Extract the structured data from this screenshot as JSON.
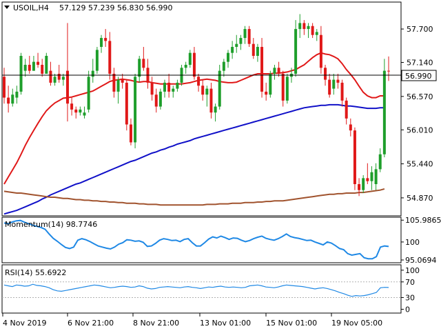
{
  "header": {
    "symbol": "USOIL,H4",
    "ohlc": "57.129 57.239 56.830 56.990"
  },
  "colors": {
    "bull": "#1e9e2b",
    "bear": "#e01818",
    "ma_fast": "#e01818",
    "ma_mid": "#1010c8",
    "ma_slow": "#a0522d",
    "indicator": "#1e88e5",
    "grid": "#b0b0b0"
  },
  "chart_data": [
    {
      "type": "candlestick",
      "title": "USOIL,H4",
      "ylim": [
        54.58,
        58.14
      ],
      "y_ticks": [
        "57.700",
        "57.140",
        "56.570",
        "56.010",
        "55.440",
        "54.870"
      ],
      "current_price": "56.990",
      "x_labels": [
        "4 Nov 2019",
        "6 Nov 21:00",
        "8 Nov 21:00",
        "13 Nov 01:00",
        "15 Nov 01:00",
        "19 Nov 05:00"
      ],
      "candles": [
        [
          56.9,
          57.05,
          56.45,
          56.55
        ],
        [
          56.55,
          56.75,
          56.3,
          56.45
        ],
        [
          56.45,
          56.7,
          56.4,
          56.6
        ],
        [
          56.55,
          56.75,
          56.45,
          56.65
        ],
        [
          56.65,
          57.3,
          56.6,
          57.25
        ],
        [
          57.0,
          57.2,
          56.9,
          57.1
        ],
        [
          57.1,
          57.25,
          56.95,
          57.0
        ],
        [
          57.0,
          57.25,
          57.0,
          57.15
        ],
        [
          57.15,
          57.3,
          57.05,
          57.1
        ],
        [
          57.1,
          57.2,
          56.9,
          56.95
        ],
        [
          56.95,
          57.3,
          56.95,
          57.25
        ],
        [
          57.0,
          57.15,
          56.75,
          56.8
        ],
        [
          56.8,
          56.95,
          56.75,
          56.9
        ],
        [
          56.95,
          57.1,
          56.8,
          56.85
        ],
        [
          56.85,
          56.95,
          56.75,
          56.9
        ],
        [
          57.0,
          57.8,
          56.15,
          56.45
        ],
        [
          56.45,
          56.55,
          56.25,
          56.35
        ],
        [
          56.35,
          56.4,
          56.2,
          56.3
        ],
        [
          56.3,
          56.4,
          56.25,
          56.35
        ],
        [
          56.25,
          56.4,
          56.2,
          56.3
        ],
        [
          56.35,
          57.0,
          56.3,
          56.9
        ],
        [
          56.9,
          57.2,
          56.8,
          57.0
        ],
        [
          57.0,
          57.4,
          56.95,
          57.35
        ],
        [
          57.4,
          57.6,
          57.3,
          57.55
        ],
        [
          57.55,
          57.7,
          57.4,
          57.5
        ],
        [
          57.5,
          57.65,
          56.85,
          56.95
        ],
        [
          56.95,
          57.05,
          56.55,
          56.65
        ],
        [
          56.65,
          56.9,
          56.45,
          56.85
        ],
        [
          56.85,
          56.95,
          56.7,
          56.8
        ],
        [
          56.8,
          56.85,
          56.0,
          56.1
        ],
        [
          56.1,
          56.2,
          55.75,
          55.8
        ],
        [
          55.8,
          56.95,
          55.7,
          56.9
        ],
        [
          56.9,
          57.25,
          56.8,
          57.2
        ],
        [
          57.2,
          57.4,
          57.0,
          57.05
        ],
        [
          57.05,
          57.2,
          56.7,
          56.8
        ],
        [
          56.8,
          56.9,
          56.5,
          56.6
        ],
        [
          56.6,
          56.7,
          56.3,
          56.4
        ],
        [
          56.4,
          56.7,
          56.35,
          56.65
        ],
        [
          56.65,
          56.85,
          56.55,
          56.8
        ],
        [
          56.8,
          56.95,
          56.55,
          56.65
        ],
        [
          56.65,
          56.75,
          56.55,
          56.7
        ],
        [
          56.7,
          56.85,
          56.65,
          56.8
        ],
        [
          56.8,
          57.1,
          56.75,
          57.05
        ],
        [
          57.05,
          57.15,
          56.95,
          57.1
        ],
        [
          57.1,
          57.35,
          57.05,
          57.3
        ],
        [
          57.3,
          57.4,
          56.85,
          56.9
        ],
        [
          56.9,
          56.95,
          56.65,
          56.75
        ],
        [
          56.75,
          56.85,
          56.5,
          56.6
        ],
        [
          56.6,
          56.75,
          56.4,
          56.7
        ],
        [
          56.7,
          56.8,
          56.2,
          56.3
        ],
        [
          56.3,
          56.45,
          56.15,
          56.4
        ],
        [
          56.4,
          57.1,
          56.35,
          57.0
        ],
        [
          57.0,
          57.2,
          56.9,
          57.15
        ],
        [
          57.15,
          57.35,
          57.05,
          57.3
        ],
        [
          57.3,
          57.5,
          57.2,
          57.4
        ],
        [
          57.4,
          57.6,
          57.3,
          57.45
        ],
        [
          57.45,
          57.6,
          57.35,
          57.55
        ],
        [
          57.55,
          57.75,
          57.45,
          57.7
        ],
        [
          57.7,
          57.75,
          57.4,
          57.45
        ],
        [
          57.45,
          57.55,
          57.2,
          57.25
        ],
        [
          57.25,
          57.45,
          57.15,
          57.4
        ],
        [
          57.4,
          57.55,
          56.55,
          56.65
        ],
        [
          56.65,
          56.8,
          56.5,
          56.6
        ],
        [
          56.6,
          57.0,
          56.55,
          56.95
        ],
        [
          56.95,
          57.1,
          56.85,
          57.05
        ],
        [
          57.05,
          57.15,
          56.9,
          56.95
        ],
        [
          56.95,
          57.0,
          56.4,
          56.5
        ],
        [
          56.5,
          56.95,
          56.45,
          56.9
        ],
        [
          56.9,
          57.05,
          56.8,
          56.95
        ],
        [
          56.95,
          57.85,
          56.9,
          57.7
        ],
        [
          57.7,
          57.95,
          57.55,
          57.8
        ],
        [
          57.8,
          57.85,
          57.6,
          57.7
        ],
        [
          57.7,
          57.8,
          57.55,
          57.75
        ],
        [
          57.75,
          57.8,
          57.55,
          57.6
        ],
        [
          57.6,
          57.7,
          57.5,
          57.65
        ],
        [
          57.6,
          57.75,
          56.95,
          57.05
        ],
        [
          57.05,
          57.1,
          56.75,
          56.85
        ],
        [
          56.85,
          56.95,
          56.55,
          56.6
        ],
        [
          56.7,
          56.95,
          56.6,
          56.85
        ],
        [
          56.85,
          56.95,
          56.7,
          56.8
        ],
        [
          56.8,
          56.85,
          56.4,
          56.5
        ],
        [
          56.5,
          56.55,
          56.1,
          56.2
        ],
        [
          56.1,
          56.2,
          55.9,
          56.0
        ],
        [
          56.0,
          56.05,
          55.0,
          55.1
        ],
        [
          55.1,
          55.2,
          54.9,
          55.0
        ],
        [
          55.0,
          55.25,
          54.95,
          55.2
        ],
        [
          55.2,
          55.45,
          55.1,
          55.15
        ],
        [
          55.15,
          55.4,
          55.0,
          55.3
        ],
        [
          55.1,
          55.45,
          55.0,
          55.35
        ],
        [
          55.35,
          55.7,
          55.3,
          55.6
        ],
        [
          55.6,
          57.2,
          55.55,
          57.0
        ],
        [
          57.0,
          57.24,
          56.83,
          56.99
        ]
      ],
      "series": [
        {
          "values": [
            55.1,
            55.22,
            55.34,
            55.46,
            55.6,
            55.75,
            55.88,
            56.0,
            56.12,
            56.23,
            56.33,
            56.4,
            56.46,
            56.5,
            56.54,
            56.55,
            56.56,
            56.58,
            56.6,
            56.62,
            56.64,
            56.66,
            56.7,
            56.74,
            56.78,
            56.82,
            56.84,
            56.85,
            56.86,
            56.85,
            56.84,
            56.82,
            56.81,
            56.82,
            56.82,
            56.8,
            56.79,
            56.78,
            56.78,
            56.78,
            56.78,
            56.78,
            56.78,
            56.79,
            56.8,
            56.82,
            56.84,
            56.85,
            56.86,
            56.85,
            56.84,
            56.82,
            56.81,
            56.8,
            56.8,
            56.81,
            56.84,
            56.87,
            56.9,
            56.93,
            56.95,
            56.95,
            56.95,
            56.95,
            56.96,
            56.96,
            56.97,
            56.98,
            57.0,
            57.02,
            57.06,
            57.1,
            57.16,
            57.22,
            57.27,
            57.3,
            57.28,
            57.27,
            57.24,
            57.2,
            57.12,
            57.02,
            56.94,
            56.85,
            56.74,
            56.64,
            56.58,
            56.55,
            56.55,
            56.58,
            56.58
          ]
        },
        {
          "values": [
            54.6,
            54.62,
            54.64,
            54.66,
            54.69,
            54.72,
            54.75,
            54.78,
            54.81,
            54.85,
            54.88,
            54.92,
            54.95,
            54.98,
            55.01,
            55.04,
            55.07,
            55.1,
            55.12,
            55.15,
            55.18,
            55.21,
            55.24,
            55.27,
            55.3,
            55.33,
            55.36,
            55.39,
            55.42,
            55.45,
            55.48,
            55.5,
            55.53,
            55.56,
            55.59,
            55.62,
            55.64,
            55.67,
            55.69,
            55.72,
            55.74,
            55.77,
            55.79,
            55.81,
            55.83,
            55.86,
            55.88,
            55.9,
            55.92,
            55.94,
            55.96,
            55.98,
            56.0,
            56.02,
            56.04,
            56.06,
            56.08,
            56.1,
            56.12,
            56.14,
            56.16,
            56.18,
            56.2,
            56.22,
            56.24,
            56.26,
            56.28,
            56.3,
            56.32,
            56.34,
            56.36,
            56.38,
            56.39,
            56.4,
            56.41,
            56.42,
            56.42,
            56.43,
            56.43,
            56.43,
            56.42,
            56.41,
            56.41,
            56.4,
            56.39,
            56.38,
            56.37,
            56.37,
            56.37,
            56.38,
            56.38
          ]
        },
        {
          "values": [
            54.98,
            54.97,
            54.96,
            54.95,
            54.95,
            54.94,
            54.93,
            54.92,
            54.91,
            54.9,
            54.89,
            54.88,
            54.88,
            54.87,
            54.86,
            54.86,
            54.85,
            54.84,
            54.84,
            54.83,
            54.83,
            54.82,
            54.82,
            54.81,
            54.81,
            54.8,
            54.8,
            54.79,
            54.79,
            54.78,
            54.78,
            54.78,
            54.77,
            54.77,
            54.76,
            54.76,
            54.76,
            54.75,
            54.75,
            54.75,
            54.75,
            54.75,
            54.75,
            54.75,
            54.75,
            54.75,
            54.75,
            54.75,
            54.76,
            54.76,
            54.76,
            54.77,
            54.77,
            54.77,
            54.78,
            54.78,
            54.78,
            54.79,
            54.79,
            54.79,
            54.8,
            54.8,
            54.81,
            54.81,
            54.82,
            54.82,
            54.82,
            54.83,
            54.84,
            54.85,
            54.86,
            54.87,
            54.88,
            54.89,
            54.9,
            54.91,
            54.92,
            54.93,
            54.93,
            54.94,
            54.94,
            54.95,
            54.95,
            54.95,
            54.96,
            54.96,
            54.97,
            54.98,
            54.99,
            55.0,
            55.02
          ]
        }
      ]
    },
    {
      "type": "line",
      "title": "Momentum(14) 98.7746",
      "ylim": [
        94.5,
        106.6
      ],
      "y_ticks": [
        "105.9865",
        "100",
        "95.0694"
      ],
      "series": [
        {
          "values": [
            105.2,
            105.0,
            105.5,
            105.8,
            105.9,
            105.4,
            105.0,
            104.6,
            104.3,
            104.0,
            103.5,
            102.2,
            101.0,
            100.2,
            99.3,
            98.5,
            98.2,
            98.6,
            100.5,
            100.9,
            100.6,
            100.1,
            99.5,
            98.9,
            98.6,
            98.3,
            98.1,
            98.6,
            99.4,
            99.8,
            100.6,
            100.5,
            100.2,
            100.3,
            99.9,
            98.8,
            98.9,
            99.6,
            100.5,
            100.9,
            100.7,
            100.4,
            100.5,
            100.1,
            100.7,
            100.9,
            99.8,
            98.9,
            98.9,
            99.8,
            100.8,
            101.4,
            101.1,
            101.6,
            101.2,
            100.7,
            101.1,
            101.0,
            100.5,
            100.1,
            100.4,
            100.9,
            101.3,
            101.6,
            101.0,
            100.7,
            100.5,
            100.9,
            101.5,
            102.2,
            101.5,
            101.2,
            101.0,
            100.7,
            100.4,
            100.5,
            100.0,
            99.6,
            99.2,
            100.0,
            99.7,
            99.0,
            98.2,
            97.9,
            96.8,
            96.4,
            96.6,
            96.8,
            95.7,
            95.4,
            95.4,
            96.0,
            98.6,
            98.9,
            98.77
          ]
        }
      ]
    },
    {
      "type": "line",
      "title": "RSI(14) 55.6922",
      "ylim": [
        -8,
        112
      ],
      "y_ticks": [
        "100",
        "70",
        "30",
        "0"
      ],
      "levels": [
        70,
        30
      ],
      "series": [
        {
          "values": [
            62,
            60,
            58,
            62,
            61,
            59,
            60,
            64,
            61,
            60,
            58,
            55,
            50,
            47,
            46,
            48,
            50,
            52,
            54,
            56,
            58,
            60,
            62,
            61,
            59,
            57,
            55,
            56,
            58,
            59,
            58,
            56,
            57,
            60,
            58,
            54,
            52,
            53,
            56,
            57,
            58,
            57,
            56,
            55,
            57,
            58,
            56,
            55,
            53,
            55,
            57,
            56,
            58,
            59,
            57,
            56,
            57,
            56,
            55,
            56,
            60,
            61,
            62,
            60,
            57,
            56,
            55,
            57,
            60,
            62,
            61,
            60,
            59,
            58,
            56,
            54,
            52,
            54,
            55,
            53,
            50,
            47,
            43,
            40,
            36,
            33,
            35,
            34,
            35,
            37,
            40,
            43,
            55,
            56,
            55.7
          ]
        }
      ]
    }
  ]
}
